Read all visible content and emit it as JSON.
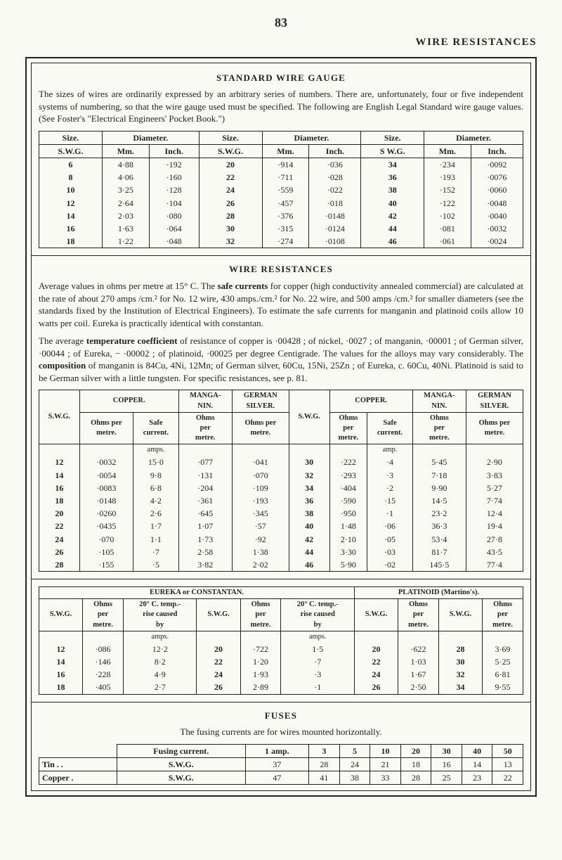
{
  "page_number": "83",
  "header_right": "WIRE RESISTANCES",
  "sec1": {
    "title": "STANDARD WIRE GAUGE",
    "para": "The sizes of wires are ordinarily expressed by an arbitrary series of numbers. There are, unfortunately, four or five independent systems of numbering, so that the wire gauge used must be specified. The following are English Legal Standard wire gauge values. (See Foster's \"Electrical Engineers' Pocket Book.\")",
    "cols": {
      "size": "Size.",
      "diameter": "Diameter.",
      "swg": "S.W.G.",
      "mm": "Mm.",
      "inch": "Inch.",
      "swg2": "S W.G."
    },
    "rows": [
      {
        "g1": "6",
        "m1": "4·88",
        "i1": "·192",
        "g2": "20",
        "m2": "·914",
        "i2": "·036",
        "g3": "34",
        "m3": "·234",
        "i3": "·0092"
      },
      {
        "g1": "8",
        "m1": "4·06",
        "i1": "·160",
        "g2": "22",
        "m2": "·711",
        "i2": "·028",
        "g3": "36",
        "m3": "·193",
        "i3": "·0076"
      },
      {
        "g1": "10",
        "m1": "3·25",
        "i1": "·128",
        "g2": "24",
        "m2": "·559",
        "i2": "·022",
        "g3": "38",
        "m3": "·152",
        "i3": "·0060"
      },
      {
        "g1": "12",
        "m1": "2·64",
        "i1": "·104",
        "g2": "26",
        "m2": "·457",
        "i2": "·018",
        "g3": "40",
        "m3": "·122",
        "i3": "·0048"
      },
      {
        "g1": "14",
        "m1": "2·03",
        "i1": "·080",
        "g2": "28",
        "m2": "·376",
        "i2": "·0148",
        "g3": "42",
        "m3": "·102",
        "i3": "·0040"
      },
      {
        "g1": "16",
        "m1": "1·63",
        "i1": "·064",
        "g2": "30",
        "m2": "·315",
        "i2": "·0124",
        "g3": "44",
        "m3": "·081",
        "i3": "·0032"
      },
      {
        "g1": "18",
        "m1": "1·22",
        "i1": "·048",
        "g2": "32",
        "m2": "·274",
        "i2": "·0108",
        "g3": "46",
        "m3": "·061",
        "i3": "·0024"
      }
    ]
  },
  "sec2": {
    "title": "WIRE RESISTANCES",
    "para1a": "Average values in ohms per metre at 15° C. The ",
    "safe_currents": "safe currents",
    "para1b": " for copper (high conductivity annealed commercial) are calculated at the rate of about 270 amps /cm.² for No. 12 wire, 430 amps./cm.² for No. 22 wire, and 500 amps /cm.² for smaller diameters (see the standards fixed by the Institution of Electrical Engineers). To estimate the safe currents for manganin and platinoid coils allow 10 watts per coil. Eureka is practically identical with constantan.",
    "para2a": "The average ",
    "tempco": "temperature coefficient",
    "para2b": " of resistance of copper is ·00428 ; of nickel, ·0027 ; of manganin, ·00001 ; of German silver, ·00044 ; of Eureka, − ·00002 ; of platinoid, ·00025 per degree Centigrade. The values for the alloys may vary considerably. The ",
    "composition": "composition",
    "para2c": " of manganin is 84Cu, 4Ni, 12Mn; of German silver, 60Cu, 15Ni, 25Zn ; of Eureka, c. 60Cu, 40Ni. Platinoid is said to be German silver with a little tungsten. For specific resistances, see p. 81.",
    "cols": {
      "swg": "S.W.G.",
      "copper": "COPPER.",
      "manganin": "MANGA-\nNIN.",
      "german": "GERMAN\nSILVER.",
      "ohmsper": "Ohms per\nmetre.",
      "safe": "Safe\ncurrent.",
      "ohmspm": "Ohms\nper\nmetre.",
      "opm": "Ohms per\nmetre.",
      "amps": "amps.",
      "amp": "amp."
    },
    "rows": [
      {
        "g1": "12",
        "op1": "·0032",
        "sc1": "15·0",
        "mn1": "·077",
        "gs1": "·041",
        "g2": "30",
        "op2": "·222",
        "sc2": "·4",
        "mn2": "5·45",
        "gs2": "2·90"
      },
      {
        "g1": "14",
        "op1": "·0054",
        "sc1": "9·8",
        "mn1": "·131",
        "gs1": "·070",
        "g2": "32",
        "op2": "·293",
        "sc2": "·3",
        "mn2": "7·18",
        "gs2": "3·83"
      },
      {
        "g1": "16",
        "op1": "·0083",
        "sc1": "6·8",
        "mn1": "·204",
        "gs1": "·109",
        "g2": "34",
        "op2": "·404",
        "sc2": "·2",
        "mn2": "9·90",
        "gs2": "5·27"
      },
      {
        "g1": "18",
        "op1": "·0148",
        "sc1": "4·2",
        "mn1": "·361",
        "gs1": "·193",
        "g2": "36",
        "op2": "·590",
        "sc2": "·15",
        "mn2": "14·5",
        "gs2": "7·74"
      },
      {
        "g1": "20",
        "op1": "·0260",
        "sc1": "2·6",
        "mn1": "·645",
        "gs1": "·345",
        "g2": "38",
        "op2": "·950",
        "sc2": "·1",
        "mn2": "23·2",
        "gs2": "12·4"
      },
      {
        "g1": "22",
        "op1": "·0435",
        "sc1": "1·7",
        "mn1": "1·07",
        "gs1": "·57",
        "g2": "40",
        "op2": "1·48",
        "sc2": "·06",
        "mn2": "36·3",
        "gs2": "19·4"
      },
      {
        "g1": "24",
        "op1": "·070",
        "sc1": "1·1",
        "mn1": "1·73",
        "gs1": "·92",
        "g2": "42",
        "op2": "2·10",
        "sc2": "·05",
        "mn2": "53·4",
        "gs2": "27·8"
      },
      {
        "g1": "26",
        "op1": "·105",
        "sc1": "·7",
        "mn1": "2·58",
        "gs1": "1·38",
        "g2": "44",
        "op2": "3·30",
        "sc2": "·03",
        "mn2": "81·7",
        "gs2": "43·5"
      },
      {
        "g1": "28",
        "op1": "·155",
        "sc1": "·5",
        "mn1": "3·82",
        "gs1": "2·02",
        "g2": "46",
        "op2": "5·90",
        "sc2": "·02",
        "mn2": "145·5",
        "gs2": "77·4"
      }
    ]
  },
  "sec3": {
    "title_left": "EUREKA or CONSTANTAN.",
    "title_right": "PLATINOID (Martino's).",
    "cols": {
      "swg": "S.W.G.",
      "ohms_per_metre": "Ohms\nper\nmetre.",
      "rise": "20° C. temp.-\nrise caused\nby",
      "amps": "amps."
    },
    "rows": [
      {
        "g1": "12",
        "o1": "·086",
        "r1": "12·2",
        "g2": "20",
        "o2": "·722",
        "r2": "1·5",
        "g3": "20",
        "p3": "·622",
        "g4": "28",
        "p4": "3·69"
      },
      {
        "g1": "14",
        "o1": "·146",
        "r1": "8·2",
        "g2": "22",
        "o2": "1·20",
        "r2": "·7",
        "g3": "22",
        "p3": "1·03",
        "g4": "30",
        "p4": "5·25"
      },
      {
        "g1": "16",
        "o1": "·228",
        "r1": "4·9",
        "g2": "24",
        "o2": "1·93",
        "r2": "·3",
        "g3": "24",
        "p3": "1·67",
        "g4": "32",
        "p4": "6·81"
      },
      {
        "g1": "18",
        "o1": "·405",
        "r1": "2·7",
        "g2": "26",
        "o2": "2·89",
        "r2": "·1",
        "g3": "26",
        "p3": "2·50",
        "g4": "34",
        "p4": "9·55"
      }
    ]
  },
  "sec4": {
    "title": "FUSES",
    "para": "The fusing currents are for wires mounted horizontally.",
    "cols": {
      "fc": "Fusing current.",
      "amp": "1 amp.",
      "c3": "3",
      "c5": "5",
      "c10": "10",
      "c20": "20",
      "c30": "30",
      "c40": "40",
      "c50": "50"
    },
    "rows": [
      {
        "n": "Tin . .",
        "m": "S.W.G.",
        "a": "37",
        "c3": "28",
        "c5": "24",
        "c10": "21",
        "c20": "18",
        "c30": "16",
        "c40": "14",
        "c50": "13"
      },
      {
        "n": "Copper .",
        "m": "S.W.G.",
        "a": "47",
        "c3": "41",
        "c5": "38",
        "c10": "33",
        "c20": "28",
        "c30": "25",
        "c40": "23",
        "c50": "22"
      }
    ]
  }
}
